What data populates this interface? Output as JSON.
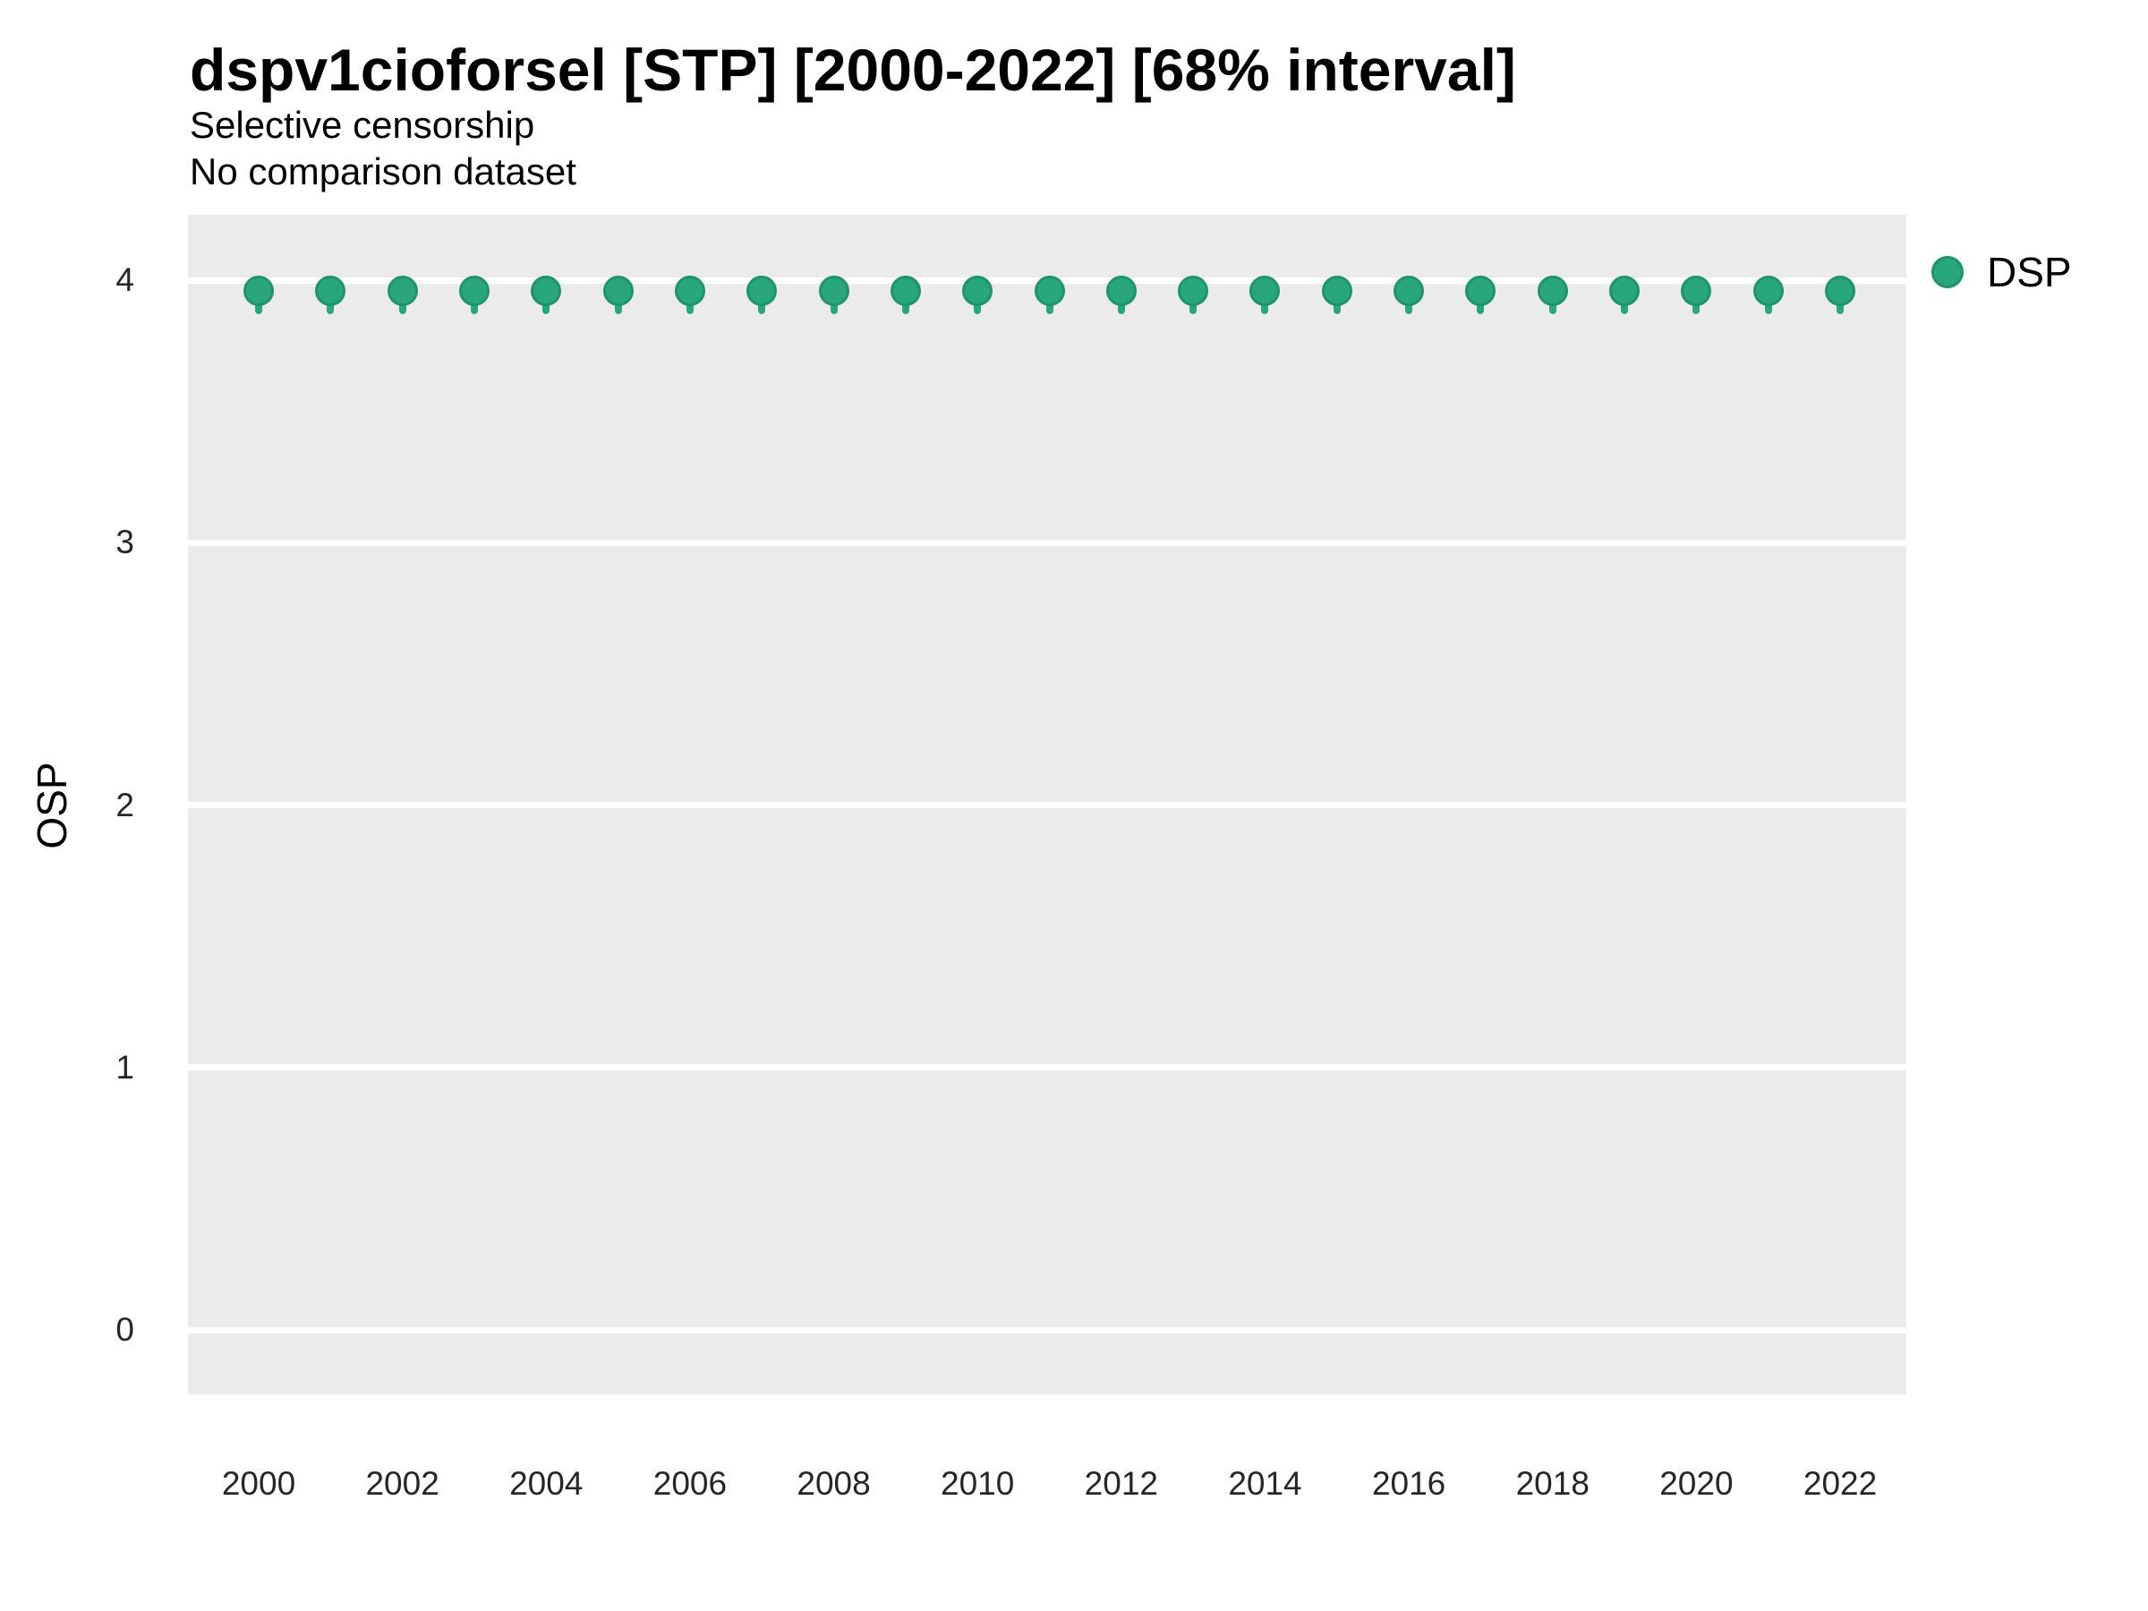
{
  "figure": {
    "title": "dspv1cioforsel [STP] [2000-2022] [68% interval]",
    "subtitle_line1": "Selective censorship",
    "subtitle_line2": "No comparison dataset"
  },
  "y_axis": {
    "label": "OSP",
    "tick_labels": [
      "0",
      "1",
      "2",
      "3",
      "4"
    ]
  },
  "x_axis": {
    "tick_labels": [
      "2000",
      "2002",
      "2004",
      "2006",
      "2008",
      "2010",
      "2012",
      "2014",
      "2016",
      "2018",
      "2020",
      "2022"
    ]
  },
  "legend": {
    "position": "right-top",
    "items": [
      {
        "label": "DSP",
        "marker": "filled-circle",
        "color": "#2aa67c"
      }
    ]
  },
  "colors": {
    "background": "#ffffff",
    "panel_bg": "#ebebeb",
    "gridline": "#ffffff",
    "point_fill": "#2aa67c",
    "point_stroke": "#1e9468",
    "title_text": "#000000",
    "tick_text": "#262626"
  },
  "chart_data": {
    "type": "scatter",
    "title": "dspv1cioforsel [STP] [2000-2022] [68% interval]",
    "subtitle": [
      "Selective censorship",
      "No comparison dataset"
    ],
    "xlabel": "",
    "ylabel": "OSP",
    "x": [
      2000,
      2001,
      2002,
      2003,
      2004,
      2005,
      2006,
      2007,
      2008,
      2009,
      2010,
      2011,
      2012,
      2013,
      2014,
      2015,
      2016,
      2017,
      2018,
      2019,
      2020,
      2021,
      2022
    ],
    "series": [
      {
        "name": "DSP",
        "values": [
          3.96,
          3.96,
          3.96,
          3.96,
          3.96,
          3.96,
          3.96,
          3.96,
          3.96,
          3.96,
          3.96,
          3.96,
          3.96,
          3.96,
          3.96,
          3.96,
          3.96,
          3.96,
          3.96,
          3.96,
          3.96,
          3.96,
          3.96
        ],
        "interval_label": "68% interval",
        "interval_low_est": 3.87,
        "interval_high_est": 3.99
      }
    ],
    "x_ticks": [
      2000,
      2002,
      2004,
      2006,
      2008,
      2010,
      2012,
      2014,
      2016,
      2018,
      2020,
      2022
    ],
    "y_ticks": [
      0,
      1,
      2,
      3,
      4
    ],
    "xlim": [
      1999.0,
      2023.0
    ],
    "ylim": [
      -0.25,
      4.25
    ],
    "grid": "horizontal-major-only",
    "legend_position": "right-top",
    "marker": "filled-circle-pointrange"
  }
}
